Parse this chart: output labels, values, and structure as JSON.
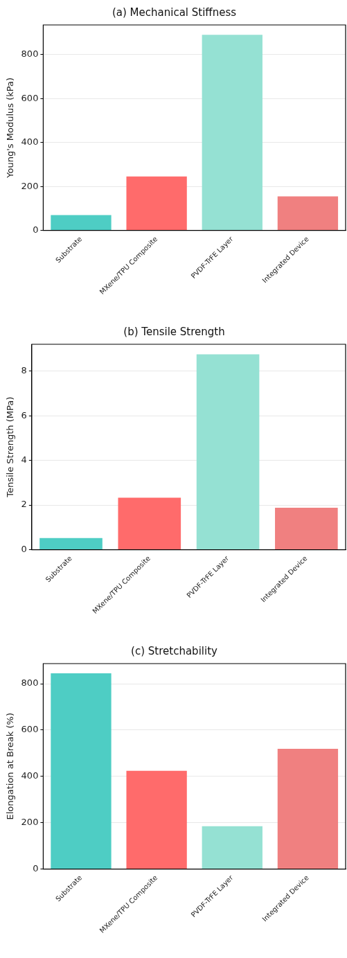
{
  "chart_data": [
    {
      "type": "bar",
      "title": "(a) Mechanical Stiffness",
      "ylabel": "Young's Modulus (kPa)",
      "categories": [
        "Substrate",
        "MXene/TPU Composite",
        "PVDF-TrFE Layer",
        "Integrated Device"
      ],
      "values": [
        70,
        245,
        890,
        155
      ],
      "colors": [
        "#4ecdc4",
        "#ff6b6b",
        "#95e1d3",
        "#f08080"
      ],
      "ylim": [
        0,
        935
      ],
      "yticks": [
        0,
        200,
        400,
        600,
        800
      ],
      "grid": "y"
    },
    {
      "type": "bar",
      "title": "(b) Tensile Strength",
      "ylabel": "Tensile Strength (MPa)",
      "categories": [
        "Substrate",
        "MXene/TPU Composite",
        "PVDF-TrFE Layer",
        "Integrated Device"
      ],
      "values": [
        0.52,
        2.33,
        8.75,
        1.88
      ],
      "colors": [
        "#4ecdc4",
        "#ff6b6b",
        "#95e1d3",
        "#f08080"
      ],
      "ylim": [
        0,
        9.2
      ],
      "yticks": [
        0,
        2,
        4,
        6,
        8
      ],
      "grid": "y"
    },
    {
      "type": "bar",
      "title": "(c) Stretchability",
      "ylabel": "Elongation at Break (%)",
      "categories": [
        "Substrate",
        "MXene/TPU Composite",
        "PVDF-TrFE Layer",
        "Integrated Device"
      ],
      "values": [
        845,
        424,
        185,
        519
      ],
      "colors": [
        "#4ecdc4",
        "#ff6b6b",
        "#95e1d3",
        "#f08080"
      ],
      "ylim": [
        0,
        887
      ],
      "yticks": [
        0,
        200,
        400,
        600,
        800
      ],
      "grid": "y"
    }
  ]
}
